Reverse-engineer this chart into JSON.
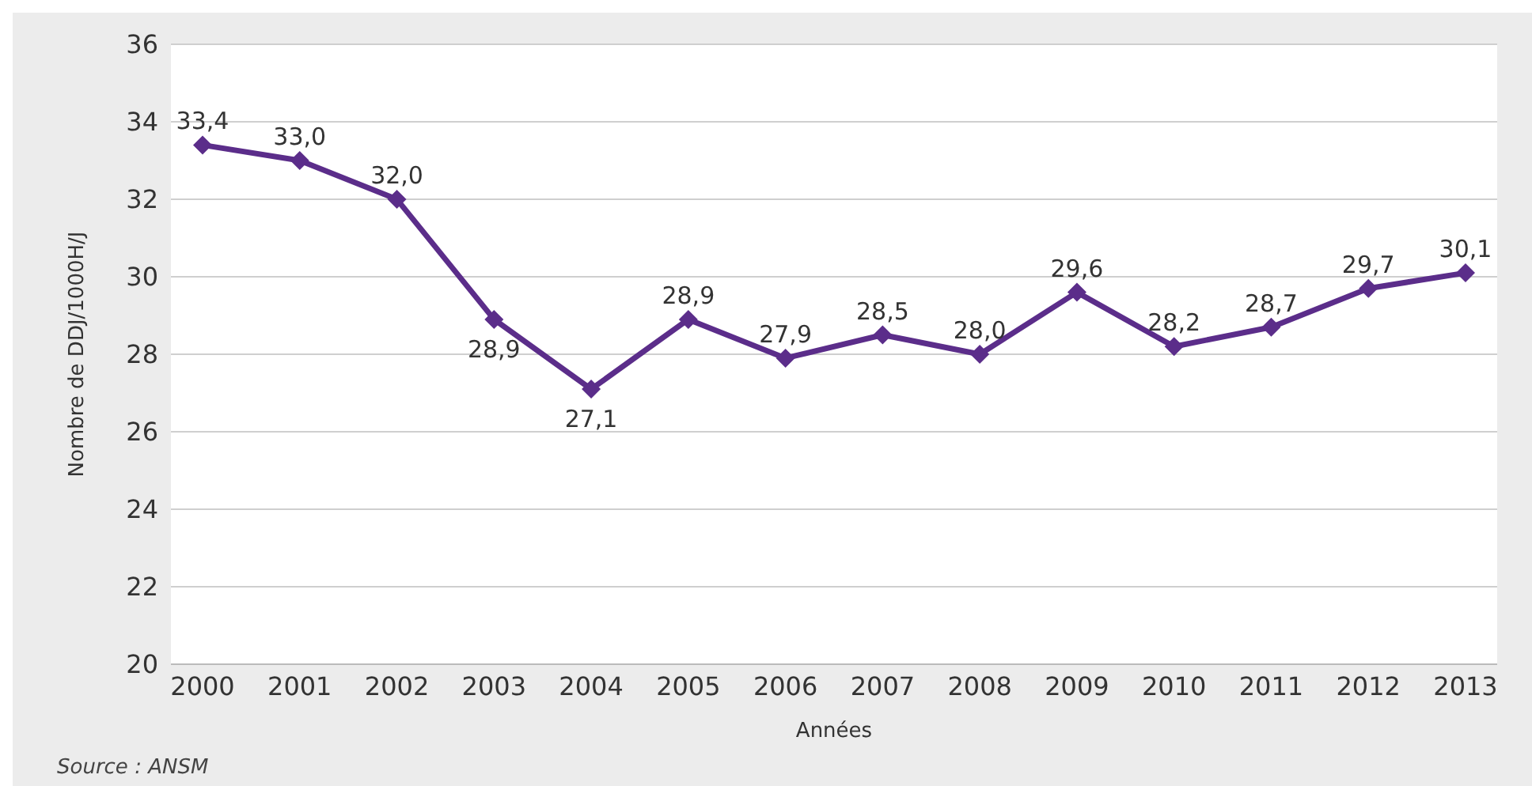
{
  "chart_data": {
    "type": "line",
    "ylabel": "Nombre de DDJ/1000H/J",
    "xlabel": "Années",
    "categories": [
      "2000",
      "2001",
      "2002",
      "2003",
      "2004",
      "2005",
      "2006",
      "2007",
      "2008",
      "2009",
      "2010",
      "2011",
      "2012",
      "2013"
    ],
    "series": [
      {
        "color": "#5b2d8a",
        "values": [
          33.4,
          33.0,
          32.0,
          28.9,
          27.1,
          28.9,
          27.9,
          28.5,
          28.0,
          29.6,
          28.2,
          28.7,
          29.7,
          30.1
        ],
        "value_labels": [
          "33,4",
          "33,0",
          "32,0",
          "28,9",
          "27,1",
          "28,9",
          "27,9",
          "28,5",
          "28,0",
          "29,6",
          "28,2",
          "28,7",
          "29,7",
          "30,1"
        ]
      }
    ],
    "ylim": [
      20,
      36
    ],
    "yticks": [
      20,
      22,
      24,
      26,
      28,
      30,
      32,
      34,
      36
    ],
    "grid": "y",
    "marker": "diamond",
    "line_style": "solid",
    "legend": false,
    "annotations": [
      "Source : ANSM"
    ]
  }
}
